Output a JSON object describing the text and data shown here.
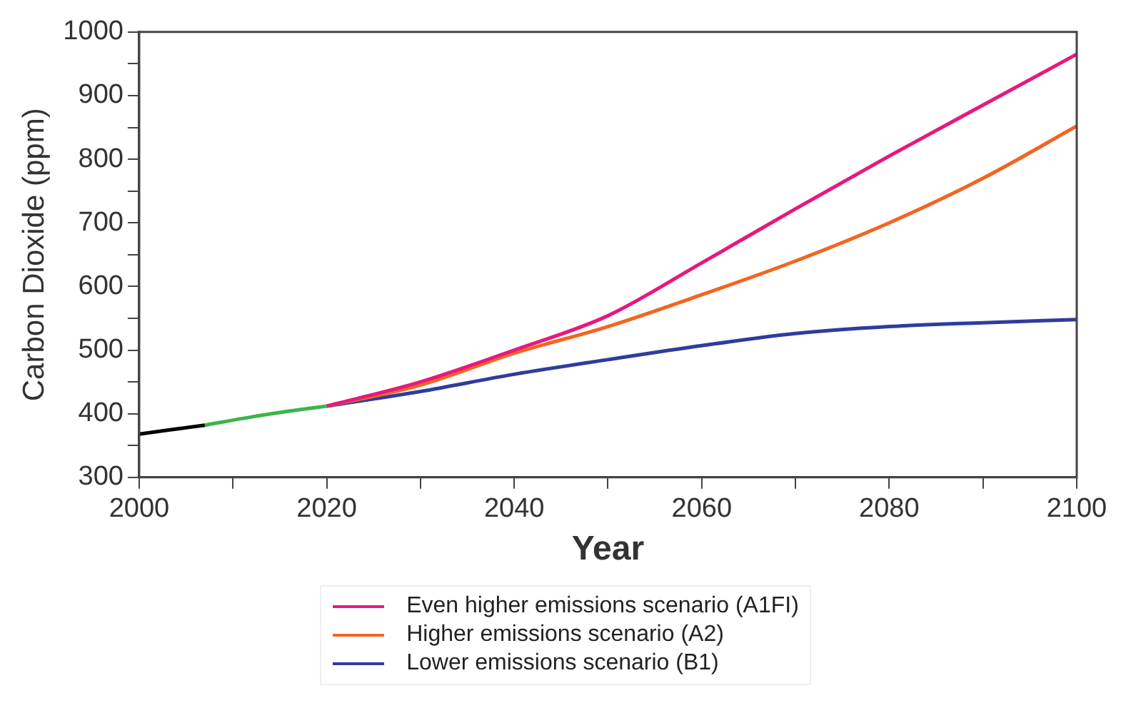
{
  "chart_data": {
    "type": "line",
    "xlabel": "Year",
    "ylabel": "Carbon Dioxide (ppm)",
    "xlim": [
      2000,
      2100
    ],
    "xticks": [
      2000,
      {
        "value": 2010,
        "label": null
      },
      2020,
      {
        "value": 2030,
        "label": null
      },
      2040,
      {
        "value": 2050,
        "label": null
      },
      2060,
      {
        "value": 2070,
        "label": null
      },
      2080,
      {
        "value": 2090,
        "label": null
      },
      2100
    ],
    "ylim": [
      300,
      1000
    ],
    "yticks": [
      300,
      {
        "value": 350,
        "label": null
      },
      400,
      {
        "value": 450,
        "label": null
      },
      500,
      {
        "value": 550,
        "label": null
      },
      600,
      {
        "value": 650,
        "label": null
      },
      700,
      {
        "value": 750,
        "label": null
      },
      800,
      {
        "value": 850,
        "label": null
      },
      900,
      {
        "value": 950,
        "label": null
      },
      1000
    ],
    "grid": false,
    "legend": "bottom",
    "marker": "none",
    "line_style": "solid",
    "series": [
      {
        "color": "#000000",
        "x": [
          2000,
          2003,
          2007
        ],
        "values": [
          368,
          374,
          382
        ]
      },
      {
        "color": "#3cb44b",
        "x": [
          2007,
          2012,
          2016,
          2020
        ],
        "values": [
          382,
          395,
          404,
          412
        ]
      },
      {
        "name": "Even higher emissions scenario (A1FI)",
        "color": "#e6197d",
        "x": [
          2020,
          2030,
          2040,
          2050,
          2060,
          2070,
          2080,
          2090,
          2100
        ],
        "values": [
          412,
          450,
          500,
          554,
          637,
          722,
          805,
          885,
          965
        ]
      },
      {
        "name": "Higher emissions scenario (A2)",
        "color": "#f26522",
        "x": [
          2020,
          2030,
          2040,
          2050,
          2060,
          2070,
          2080,
          2090,
          2100
        ],
        "values": [
          412,
          445,
          495,
          537,
          587,
          640,
          700,
          770,
          852
        ]
      },
      {
        "name": "Lower emissions scenario (B1)",
        "color": "#2e3d9c",
        "x": [
          2020,
          2030,
          2040,
          2050,
          2060,
          2070,
          2080,
          2090,
          2100
        ],
        "values": [
          412,
          435,
          462,
          485,
          507,
          526,
          537,
          543,
          548
        ]
      }
    ]
  }
}
